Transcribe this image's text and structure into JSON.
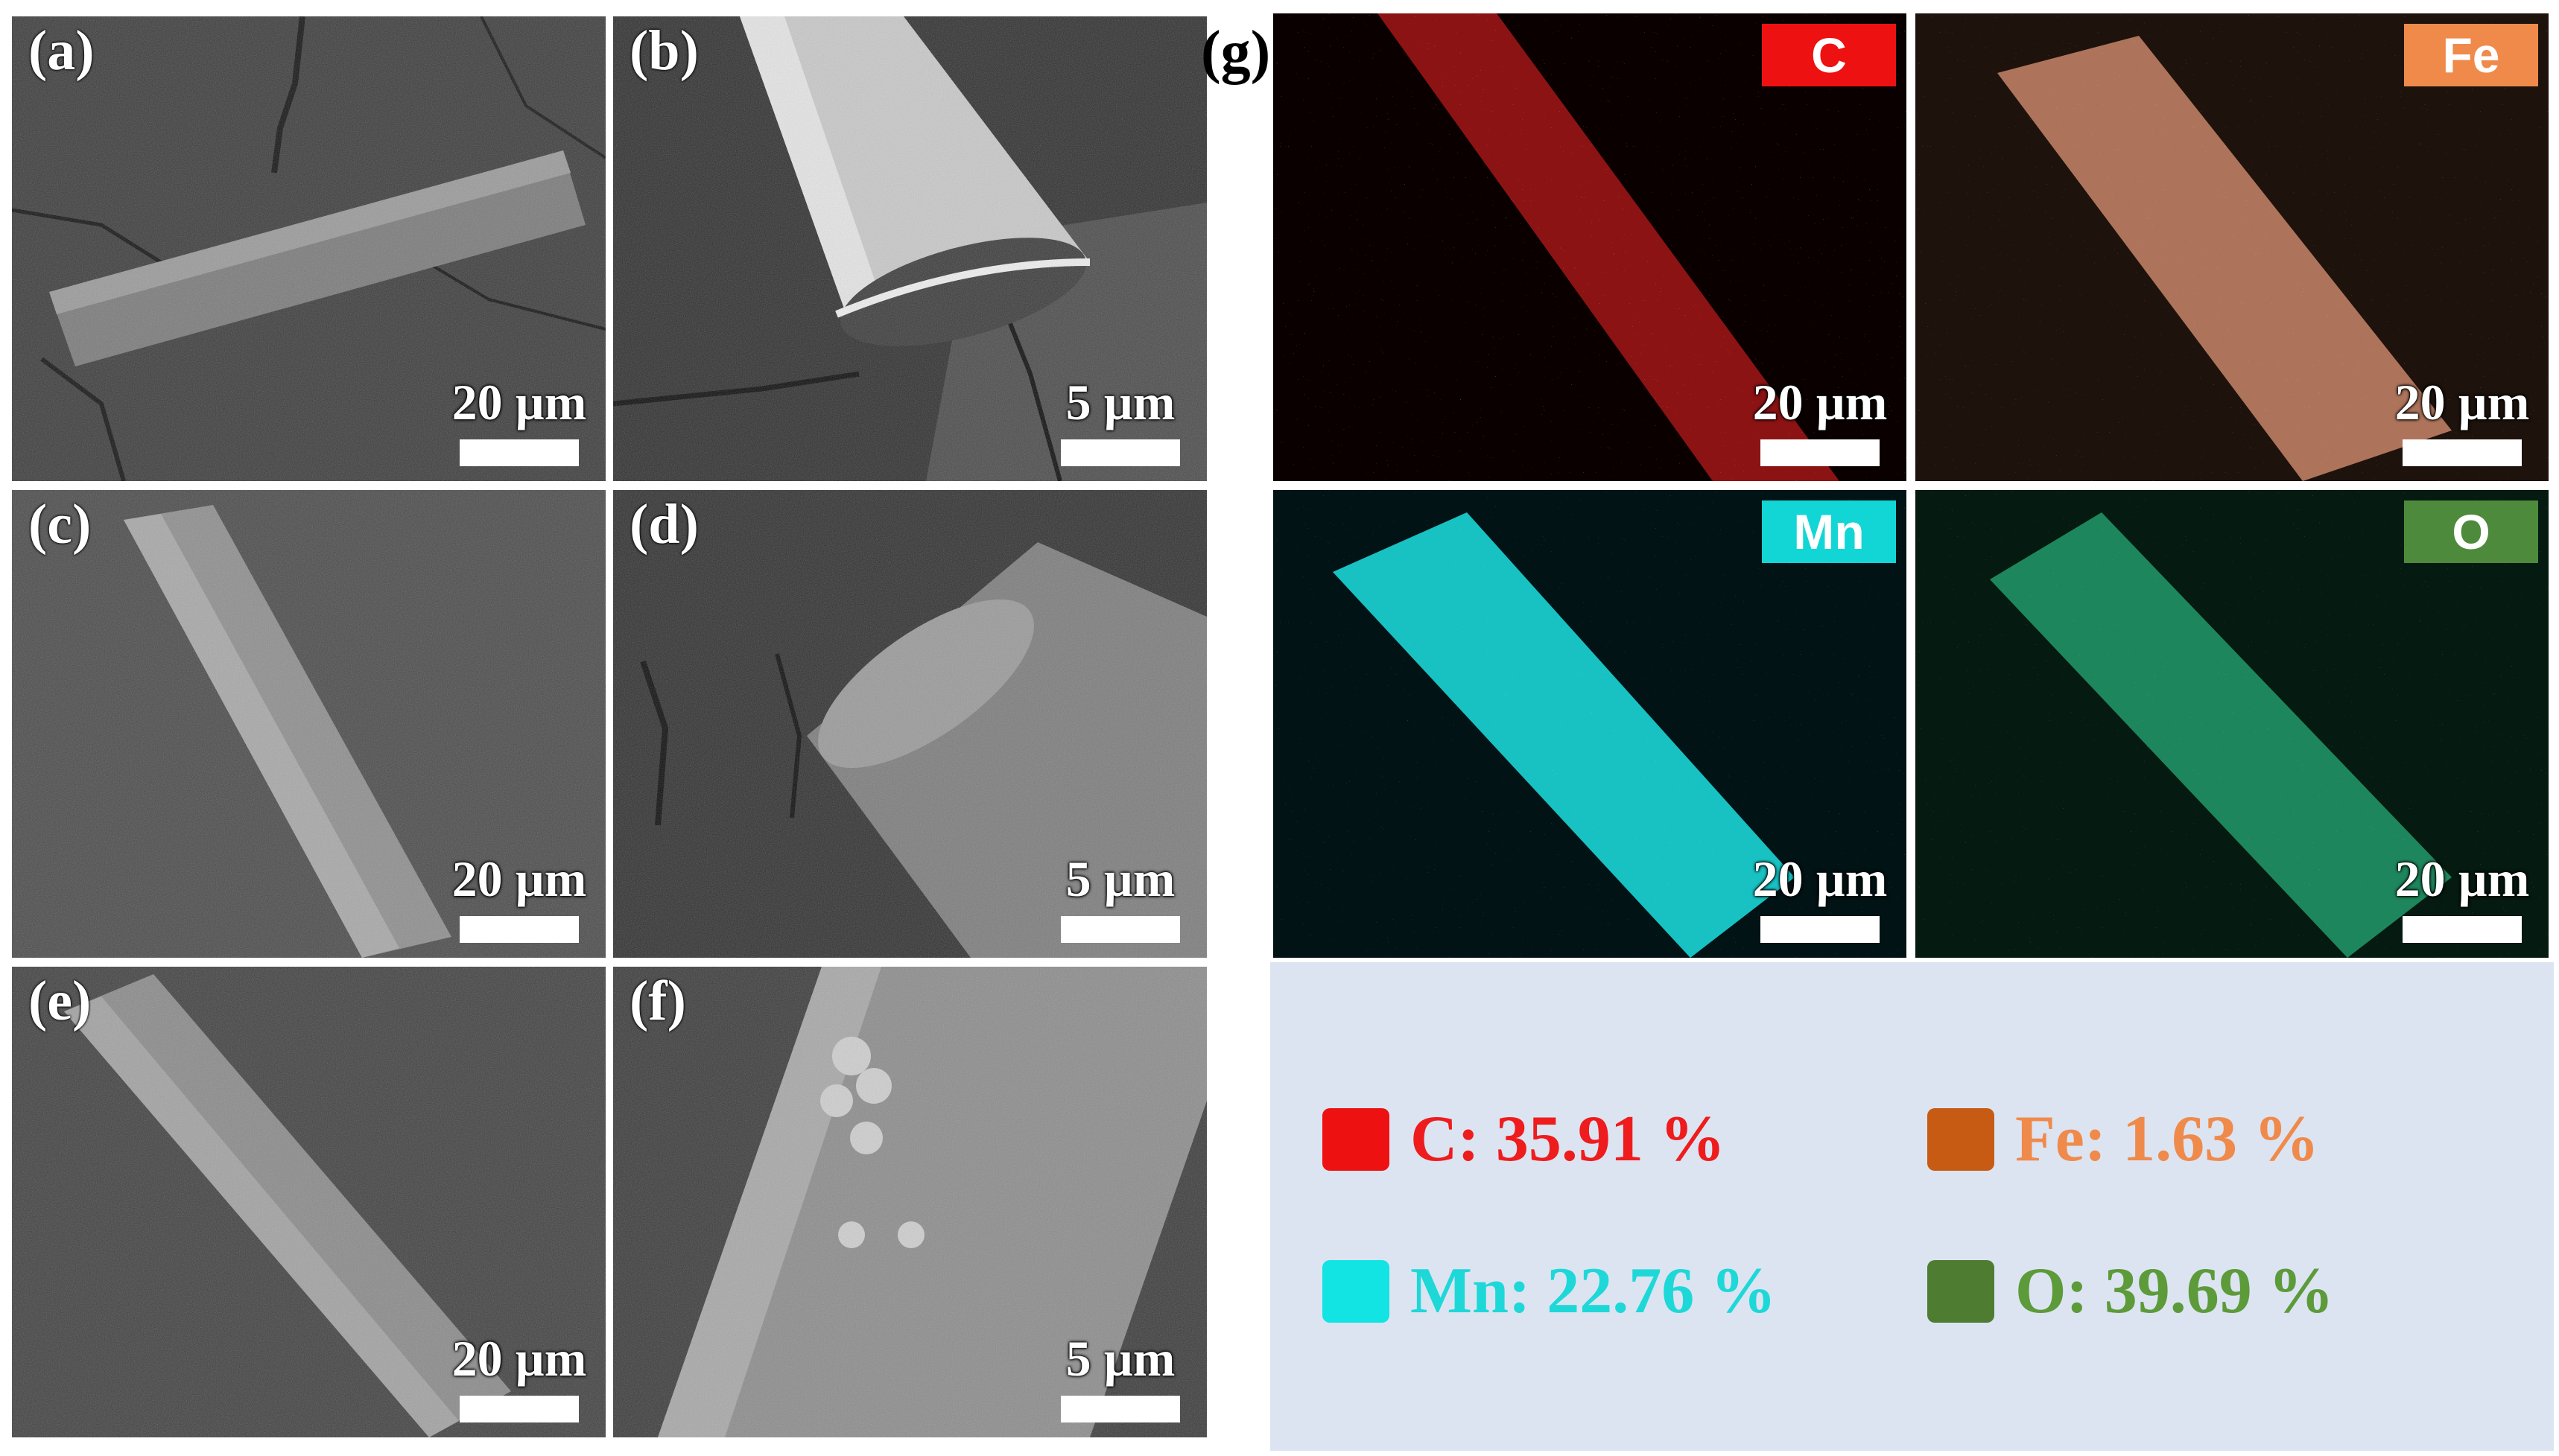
{
  "panels": [
    {
      "label": "(a)",
      "scale": "20 µm"
    },
    {
      "label": "(b)",
      "scale": "5 µm"
    },
    {
      "label": "(c)",
      "scale": "20 µm"
    },
    {
      "label": "(d)",
      "scale": "5 µm"
    },
    {
      "label": "(e)",
      "scale": "20 µm"
    },
    {
      "label": "(f)",
      "scale": "5 µm"
    }
  ],
  "g_label": "(g)",
  "maps": [
    {
      "element": "C",
      "scale": "20 µm",
      "color": "#ee1c1c"
    },
    {
      "element": "Fe",
      "scale": "20 µm",
      "color": "#ef8a4b"
    },
    {
      "element": "Mn",
      "scale": "20 µm",
      "color": "#1ed8d8"
    },
    {
      "element": "O",
      "scale": "20 µm",
      "color": "#4e8a3c"
    }
  ],
  "composition": [
    {
      "text": "C: 35.91 %",
      "text_color": "#ee1c1c",
      "swatch": "#ee1111"
    },
    {
      "text": "Fe: 1.63 %",
      "text_color": "#ef8a4b",
      "swatch": "#c75b14"
    },
    {
      "text": "Mn: 22.76 %",
      "text_color": "#1ed8d8",
      "swatch": "#12e3e3"
    },
    {
      "text": "O: 39.69 %",
      "text_color": "#5c9a3a",
      "swatch": "#4e7d31"
    }
  ]
}
